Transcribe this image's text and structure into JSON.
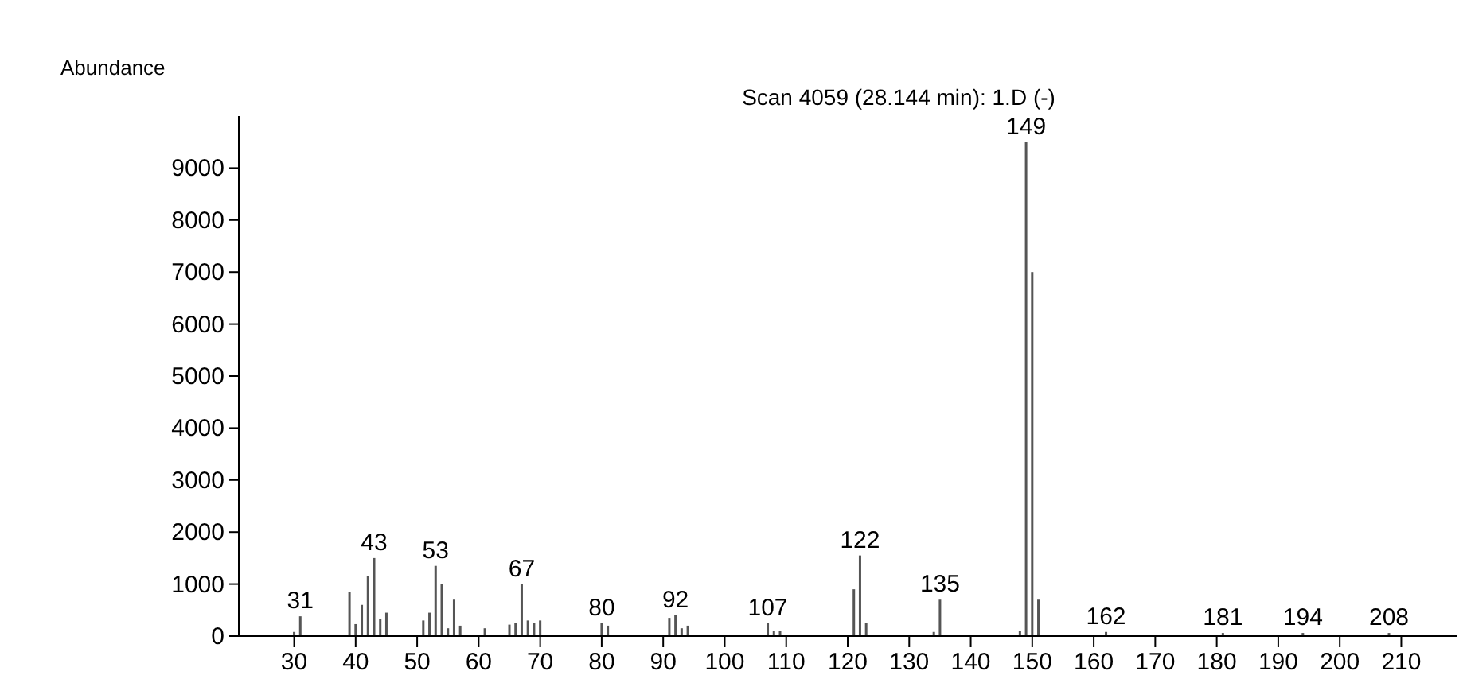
{
  "chart_data": {
    "type": "bar",
    "title": "Scan 4059 (28.144 min): 1.D (-)",
    "ylabel": "Abundance",
    "color": "#555555",
    "x": [
      30,
      31,
      39,
      40,
      41,
      42,
      43,
      44,
      45,
      51,
      52,
      53,
      54,
      55,
      56,
      57,
      61,
      65,
      66,
      67,
      68,
      69,
      70,
      80,
      81,
      91,
      92,
      93,
      94,
      107,
      108,
      109,
      121,
      122,
      123,
      134,
      135,
      148,
      149,
      150,
      151,
      162,
      181,
      194,
      208
    ],
    "values": [
      80,
      380,
      850,
      230,
      600,
      1150,
      1500,
      330,
      450,
      300,
      450,
      1350,
      1000,
      150,
      700,
      200,
      150,
      220,
      250,
      1000,
      300,
      250,
      300,
      250,
      200,
      350,
      400,
      150,
      200,
      250,
      100,
      100,
      900,
      1550,
      250,
      80,
      700,
      100,
      9500,
      7000,
      700,
      80,
      60,
      60,
      60
    ],
    "xlim": [
      21,
      219
    ],
    "xticks": [
      30,
      40,
      50,
      60,
      70,
      80,
      90,
      100,
      110,
      120,
      130,
      140,
      150,
      160,
      170,
      180,
      190,
      200,
      210
    ],
    "ylim": [
      0,
      10000
    ],
    "yticks": [
      0,
      1000,
      2000,
      3000,
      4000,
      5000,
      6000,
      7000,
      8000,
      9000
    ],
    "annotations": [
      {
        "text": "31",
        "x": 31,
        "y": 380
      },
      {
        "text": "43",
        "x": 43,
        "y": 1500
      },
      {
        "text": "53",
        "x": 53,
        "y": 1350
      },
      {
        "text": "67",
        "x": 67,
        "y": 1000
      },
      {
        "text": "80",
        "x": 80,
        "y": 250
      },
      {
        "text": "92",
        "x": 92,
        "y": 400
      },
      {
        "text": "107",
        "x": 107,
        "y": 250
      },
      {
        "text": "122",
        "x": 122,
        "y": 1550
      },
      {
        "text": "135",
        "x": 135,
        "y": 700
      },
      {
        "text": "149",
        "x": 149,
        "y": 9500
      },
      {
        "text": "162",
        "x": 162,
        "y": 80
      },
      {
        "text": "181",
        "x": 181,
        "y": 60
      },
      {
        "text": "194",
        "x": 194,
        "y": 60
      },
      {
        "text": "208",
        "x": 208,
        "y": 60
      }
    ],
    "grid": false
  }
}
